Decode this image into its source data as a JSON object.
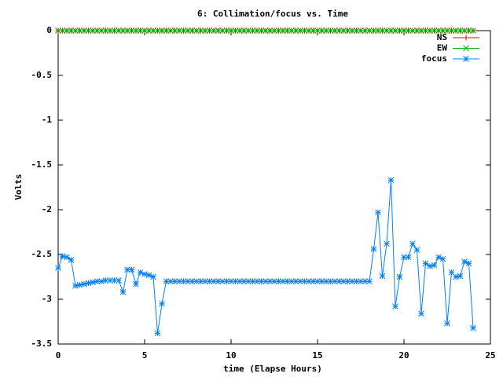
{
  "chart_data": {
    "type": "line",
    "title": "6: Collimation/focus vs. Time",
    "xlabel": "time (Elapse Hours)",
    "ylabel": "Volts",
    "x": [
      0,
      0.25,
      0.5,
      0.75,
      1,
      1.25,
      1.5,
      1.75,
      2,
      2.25,
      2.5,
      2.75,
      3,
      3.25,
      3.5,
      3.75,
      4,
      4.25,
      4.5,
      4.75,
      5,
      5.25,
      5.5,
      5.75,
      6,
      6.25,
      6.5,
      6.75,
      7,
      7.25,
      7.5,
      7.75,
      8,
      8.25,
      8.5,
      8.75,
      9,
      9.25,
      9.5,
      9.75,
      10,
      10.25,
      10.5,
      10.75,
      11,
      11.25,
      11.5,
      11.75,
      12,
      12.25,
      12.5,
      12.75,
      13,
      13.25,
      13.5,
      13.75,
      14,
      14.25,
      14.5,
      14.75,
      15,
      15.25,
      15.5,
      15.75,
      16,
      16.25,
      16.5,
      16.75,
      17,
      17.25,
      17.5,
      17.75,
      18,
      18.25,
      18.5,
      18.75,
      19,
      19.25,
      19.5,
      19.75,
      20,
      20.25,
      20.5,
      20.75,
      21,
      21.25,
      21.5,
      21.75,
      22,
      22.25,
      22.5,
      22.75,
      23,
      23.25,
      23.5,
      23.75,
      24
    ],
    "series": [
      {
        "name": "NS",
        "color": "#ff0000",
        "marker": "plus",
        "values": [
          0,
          0,
          0,
          0,
          0,
          0,
          0,
          0,
          0,
          0,
          0,
          0,
          0,
          0,
          0,
          0,
          0,
          0,
          0,
          0,
          0,
          0,
          0,
          0,
          0,
          0,
          0,
          0,
          0,
          0,
          0,
          0,
          0,
          0,
          0,
          0,
          0,
          0,
          0,
          0,
          0,
          0,
          0,
          0,
          0,
          0,
          0,
          0,
          0,
          0,
          0,
          0,
          0,
          0,
          0,
          0,
          0,
          0,
          0,
          0,
          0,
          0,
          0,
          0,
          0,
          0,
          0,
          0,
          0,
          0,
          0,
          0,
          0,
          0,
          0,
          0,
          0,
          0,
          0,
          0,
          0,
          0,
          0,
          0,
          0,
          0,
          0,
          0,
          0,
          0,
          0,
          0,
          0,
          0,
          0,
          0,
          0
        ]
      },
      {
        "name": "EW",
        "color": "#00b000",
        "marker": "cross",
        "values": [
          0,
          0,
          0,
          0,
          0,
          0,
          0,
          0,
          0,
          0,
          0,
          0,
          0,
          0,
          0,
          0,
          0,
          0,
          0,
          0,
          0,
          0,
          0,
          0,
          0,
          0,
          0,
          0,
          0,
          0,
          0,
          0,
          0,
          0,
          0,
          0,
          0,
          0,
          0,
          0,
          0,
          0,
          0,
          0,
          0,
          0,
          0,
          0,
          0,
          0,
          0,
          0,
          0,
          0,
          0,
          0,
          0,
          0,
          0,
          0,
          0,
          0,
          0,
          0,
          0,
          0,
          0,
          0,
          0,
          0,
          0,
          0,
          0,
          0,
          0,
          0,
          0,
          0,
          0,
          0,
          0,
          0,
          0,
          0,
          0,
          0,
          0,
          0,
          0,
          0,
          0,
          0,
          0,
          0,
          0,
          0,
          0
        ]
      },
      {
        "name": "focus",
        "color": "#0080ff",
        "marker": "star",
        "values": [
          -2.65,
          -2.52,
          -2.53,
          -2.56,
          -2.85,
          -2.84,
          -2.83,
          -2.82,
          -2.81,
          -2.8,
          -2.8,
          -2.79,
          -2.79,
          -2.79,
          -2.79,
          -2.92,
          -2.67,
          -2.67,
          -2.83,
          -2.7,
          -2.72,
          -2.73,
          -2.75,
          -3.38,
          -3.05,
          -2.8,
          -2.8,
          -2.8,
          -2.8,
          -2.8,
          -2.8,
          -2.8,
          -2.8,
          -2.8,
          -2.8,
          -2.8,
          -2.8,
          -2.8,
          -2.8,
          -2.8,
          -2.8,
          -2.8,
          -2.8,
          -2.8,
          -2.8,
          -2.8,
          -2.8,
          -2.8,
          -2.8,
          -2.8,
          -2.8,
          -2.8,
          -2.8,
          -2.8,
          -2.8,
          -2.8,
          -2.8,
          -2.8,
          -2.8,
          -2.8,
          -2.8,
          -2.8,
          -2.8,
          -2.8,
          -2.8,
          -2.8,
          -2.8,
          -2.8,
          -2.8,
          -2.8,
          -2.8,
          -2.8,
          -2.8,
          -2.44,
          -2.03,
          -2.74,
          -2.38,
          -1.67,
          -3.08,
          -2.75,
          -2.53,
          -2.53,
          -2.38,
          -2.45,
          -3.16,
          -2.6,
          -2.63,
          -2.62,
          -2.53,
          -2.55,
          -3.27,
          -2.7,
          -2.75,
          -2.74,
          -2.58,
          -2.6,
          -3.32
        ]
      }
    ],
    "xlim": [
      0,
      25
    ],
    "xticks": [
      0,
      5,
      10,
      15,
      20,
      25
    ],
    "ylim": [
      -3.5,
      0
    ],
    "yticks": [
      0,
      -0.5,
      -1,
      -1.5,
      -2,
      -2.5,
      -3,
      -3.5
    ],
    "grid": false,
    "legend": "top-right"
  }
}
